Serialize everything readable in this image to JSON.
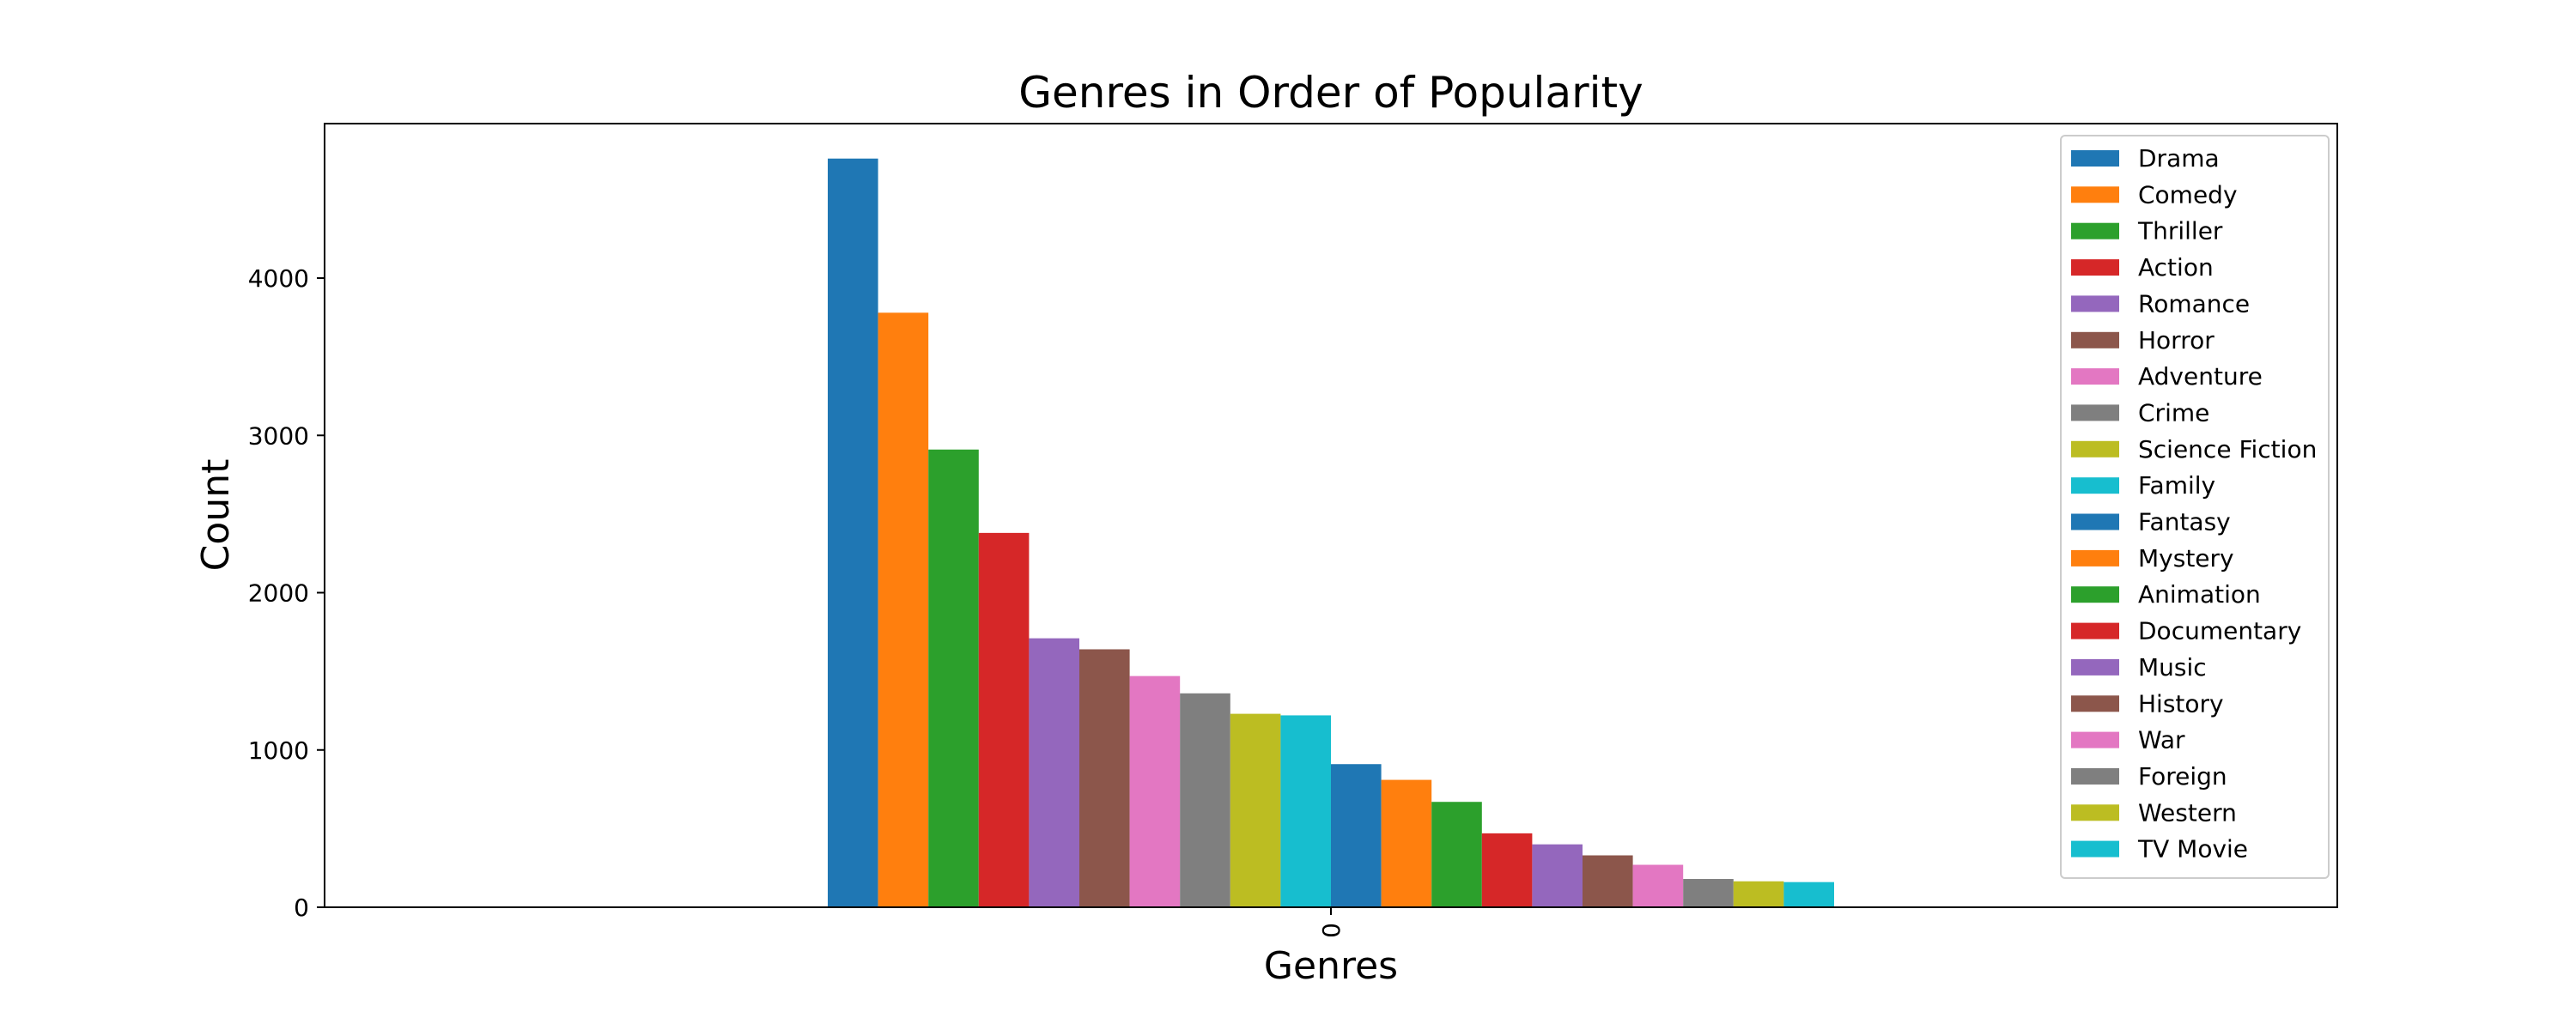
{
  "chart_data": {
    "type": "bar",
    "title": "Genres in Order of Popularity",
    "xlabel": "Genres",
    "ylabel": "Count",
    "categories": [
      "0"
    ],
    "ylim": [
      0,
      5000
    ],
    "yticks": [
      0,
      1000,
      2000,
      3000,
      4000
    ],
    "grid": false,
    "legend_position": "top-right",
    "series": [
      {
        "name": "Drama",
        "values": [
          4760
        ],
        "color": "#1f77b4"
      },
      {
        "name": "Comedy",
        "values": [
          3780
        ],
        "color": "#ff7f0e"
      },
      {
        "name": "Thriller",
        "values": [
          2910
        ],
        "color": "#2ca02c"
      },
      {
        "name": "Action",
        "values": [
          2380
        ],
        "color": "#d62728"
      },
      {
        "name": "Romance",
        "values": [
          1710
        ],
        "color": "#9467bd"
      },
      {
        "name": "Horror",
        "values": [
          1640
        ],
        "color": "#8c564b"
      },
      {
        "name": "Adventure",
        "values": [
          1470
        ],
        "color": "#e377c2"
      },
      {
        "name": "Crime",
        "values": [
          1360
        ],
        "color": "#7f7f7f"
      },
      {
        "name": "Science Fiction",
        "values": [
          1230
        ],
        "color": "#bcbd22"
      },
      {
        "name": "Family",
        "values": [
          1220
        ],
        "color": "#17becf"
      },
      {
        "name": "Fantasy",
        "values": [
          910
        ],
        "color": "#1f77b4"
      },
      {
        "name": "Mystery",
        "values": [
          810
        ],
        "color": "#ff7f0e"
      },
      {
        "name": "Animation",
        "values": [
          670
        ],
        "color": "#2ca02c"
      },
      {
        "name": "Documentary",
        "values": [
          470
        ],
        "color": "#d62728"
      },
      {
        "name": "Music",
        "values": [
          400
        ],
        "color": "#9467bd"
      },
      {
        "name": "History",
        "values": [
          330
        ],
        "color": "#8c564b"
      },
      {
        "name": "War",
        "values": [
          270
        ],
        "color": "#e377c2"
      },
      {
        "name": "Foreign",
        "values": [
          180
        ],
        "color": "#7f7f7f"
      },
      {
        "name": "Western",
        "values": [
          165
        ],
        "color": "#bcbd22"
      },
      {
        "name": "TV Movie",
        "values": [
          160
        ],
        "color": "#17becf"
      }
    ]
  }
}
